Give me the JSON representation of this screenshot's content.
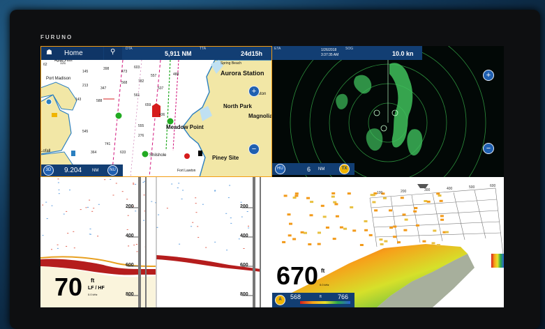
{
  "device": {
    "brand": "FURUNO"
  },
  "chart": {
    "home_label": "Home",
    "dta_label": "DTA",
    "dta_value": "5,911 NM",
    "tta_label": "TTA",
    "tta_value": "24d15h",
    "mode_3d": "3D",
    "range_value": "9.204",
    "range_unit": "NM",
    "nu_label": "NU",
    "places": [
      "Port Madison",
      "Agate Pass",
      "Spring Beach",
      "Aurora Station",
      "Kingston",
      "North Park",
      "Meadow Point",
      "Shilshole",
      "Fort Lawton",
      "Piney Site",
      "Magnolia",
      "Lofall"
    ],
    "soundings": [
      "62",
      "131",
      "145",
      "398",
      "473",
      "603",
      "557",
      "488",
      "213",
      "347",
      "568",
      "782",
      "537",
      "143",
      "588",
      "561",
      "659",
      "436",
      "555",
      "741",
      "633",
      "276",
      "545",
      "364"
    ]
  },
  "radar": {
    "eta_label": "ETA",
    "date": "1/26/2018",
    "time": "3:37:35 AM",
    "sog_label": "SOG",
    "speed": "10.0 kn",
    "hu_label": "HU",
    "range_value": "6",
    "range_unit": "NM",
    "tx_label": "TX"
  },
  "sounder": {
    "depth_scale": [
      "200",
      "400",
      "600",
      "800"
    ],
    "depth_value": "70",
    "depth_unit": "ft",
    "freq_label": "LF / HF",
    "freq_sub": "0.0 kHz"
  },
  "threed": {
    "depth_value": "670",
    "depth_unit": "ft",
    "depth_sub": "0.0 kHz",
    "auto_label": "A",
    "range_min": "568",
    "range_unit": "ft",
    "range_max": "766",
    "grid_labels": [
      "100",
      "200",
      "300",
      "400",
      "500",
      "600"
    ]
  },
  "colors": {
    "header_blue": "#123e73",
    "accent_orange": "#f39c12",
    "radar_green": "#3fbf5c"
  }
}
